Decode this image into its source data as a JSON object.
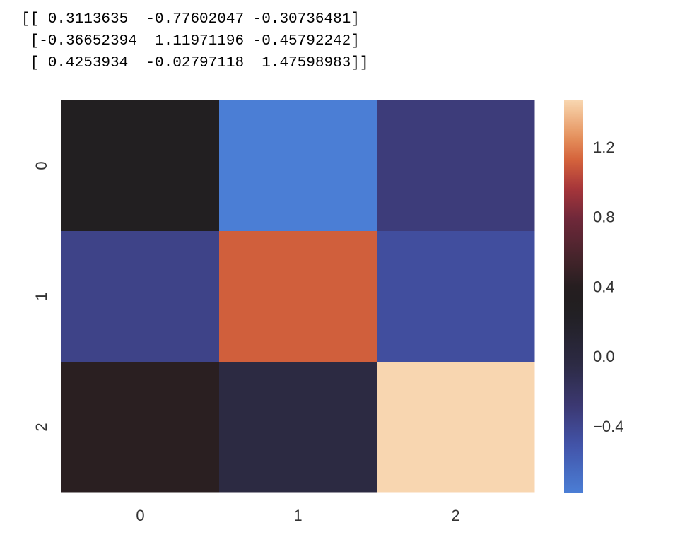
{
  "console": {
    "lines": [
      "[[ 0.3113635  -0.77602047 -0.30736481]",
      " [-0.36652394  1.11971196 -0.45792242]",
      " [ 0.4253934  -0.02797118  1.47598983]]"
    ]
  },
  "chart_data": {
    "type": "heatmap",
    "rows": [
      "0",
      "1",
      "2"
    ],
    "columns": [
      "0",
      "1",
      "2"
    ],
    "values": [
      [
        0.3113635,
        -0.77602047,
        -0.30736481
      ],
      [
        -0.36652394,
        1.11971196,
        -0.45792242
      ],
      [
        0.4253934,
        -0.02797118,
        1.47598983
      ]
    ],
    "colormap": "icefire",
    "vmin": -0.77602047,
    "vmax": 1.47598983,
    "colorbar": {
      "ticks": [
        -0.4,
        0.0,
        0.4,
        0.8,
        1.2
      ],
      "tick_labels": [
        "−0.4",
        "0.0",
        "0.4",
        "0.8",
        "1.2"
      ]
    },
    "title": "",
    "xlabel": "",
    "ylabel": ""
  }
}
